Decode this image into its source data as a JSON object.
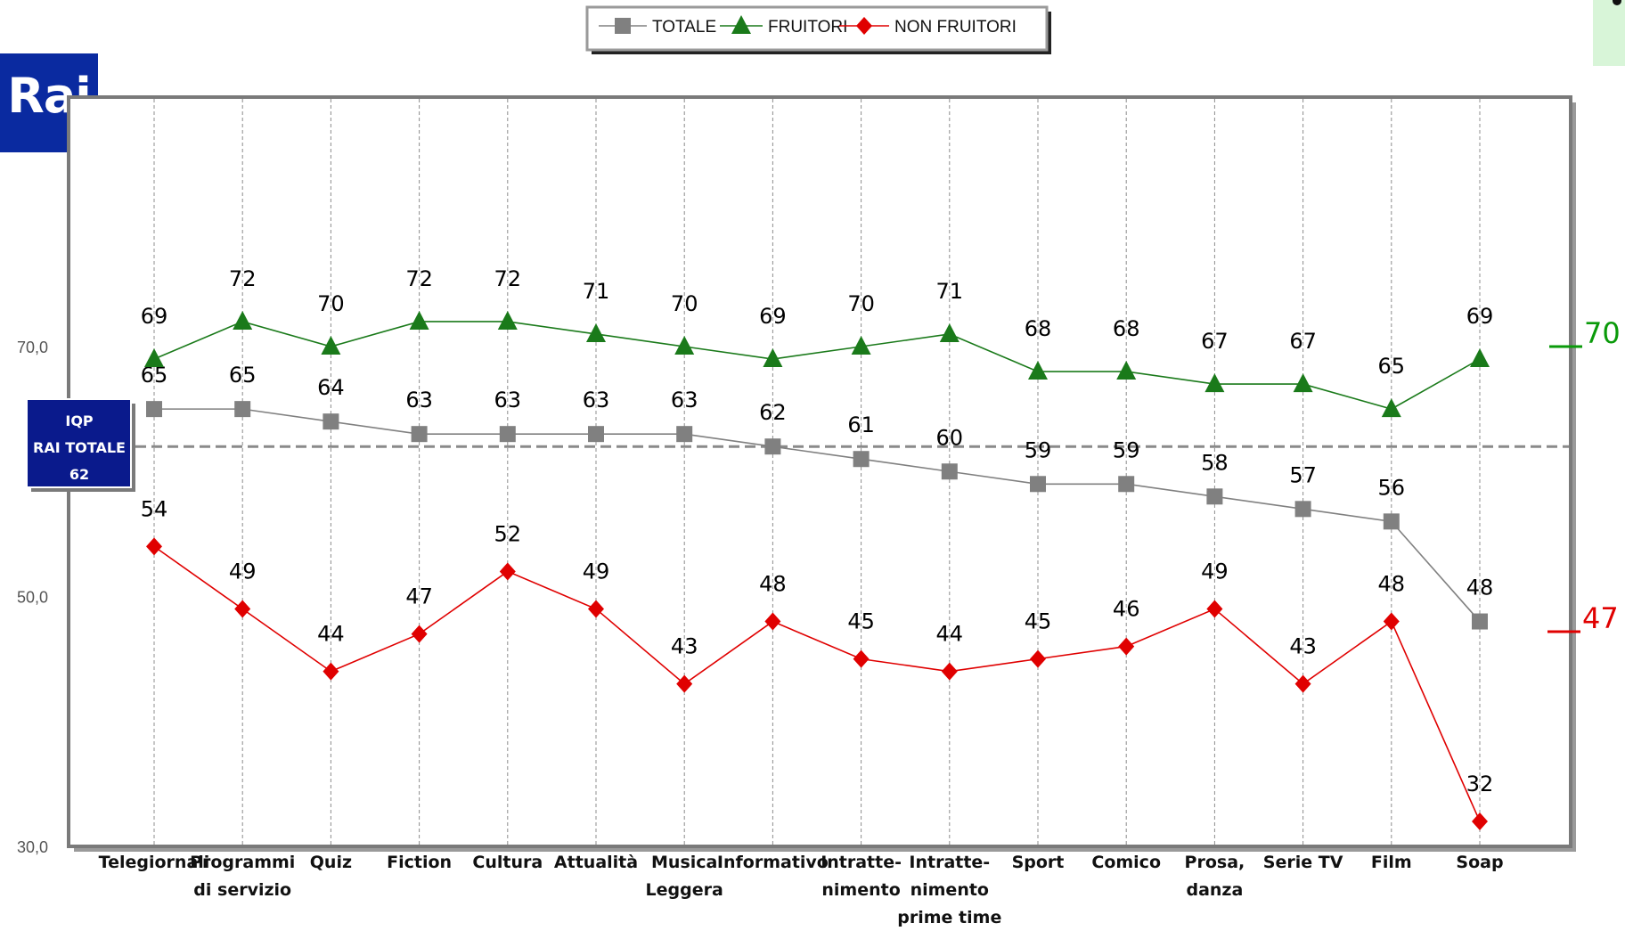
{
  "logo": {
    "text": "Rai"
  },
  "iqp_box": {
    "line1": "IQP",
    "line2": "RAI TOTALE",
    "value": "62"
  },
  "side_labels": {
    "fruitori": "70",
    "non_fruitori": "47"
  },
  "colors": {
    "totale": "#808080",
    "fruitori": "#1a7a1a",
    "non_fruitori": "#e00000",
    "side_fruitori": "#0a9a0a",
    "side_non_fruitori": "#e00000",
    "iqp_box": "#0a1a8c"
  },
  "chart_data": {
    "type": "line",
    "categories": [
      "Telegiornali",
      "Programmi di servizio",
      "Quiz",
      "Fiction",
      "Cultura",
      "Attualità",
      "Musica Leggera",
      "Informativo",
      "Intratte- nimento",
      "Intratte- nimento prime time",
      "Sport",
      "Comico",
      "Prosa, danza",
      "Serie TV",
      "Film",
      "Soap"
    ],
    "category_lines": [
      [
        "Telegiornali"
      ],
      [
        "Programmi",
        "di servizio"
      ],
      [
        "Quiz"
      ],
      [
        "Fiction"
      ],
      [
        "Cultura"
      ],
      [
        "Attualità"
      ],
      [
        "Musica",
        "Leggera"
      ],
      [
        "Informativo"
      ],
      [
        "Intratte-",
        "nimento"
      ],
      [
        "Intratte-",
        "nimento",
        "prime time"
      ],
      [
        "Sport"
      ],
      [
        "Comico"
      ],
      [
        "Prosa,",
        "danza"
      ],
      [
        "Serie TV"
      ],
      [
        "Film"
      ],
      [
        "Soap"
      ]
    ],
    "series": [
      {
        "name": "TOTALE",
        "marker": "square",
        "values": [
          65,
          65,
          64,
          63,
          63,
          63,
          63,
          62,
          61,
          60,
          59,
          59,
          58,
          57,
          56,
          48
        ]
      },
      {
        "name": "FRUITORI",
        "marker": "triangle",
        "values": [
          69,
          72,
          70,
          72,
          72,
          71,
          70,
          69,
          70,
          71,
          68,
          68,
          67,
          67,
          65,
          69
        ]
      },
      {
        "name": "NON FRUITORI",
        "marker": "diamond",
        "values": [
          54,
          49,
          44,
          47,
          52,
          49,
          43,
          48,
          45,
          44,
          45,
          46,
          49,
          43,
          48,
          32
        ]
      }
    ],
    "yticks": [
      "30,0",
      "50,0",
      "70,0"
    ],
    "ylim": [
      30,
      90
    ],
    "reference_line": {
      "value": 62,
      "style": "dashed"
    },
    "legend": "top-center",
    "grid": "vertical dashed"
  }
}
